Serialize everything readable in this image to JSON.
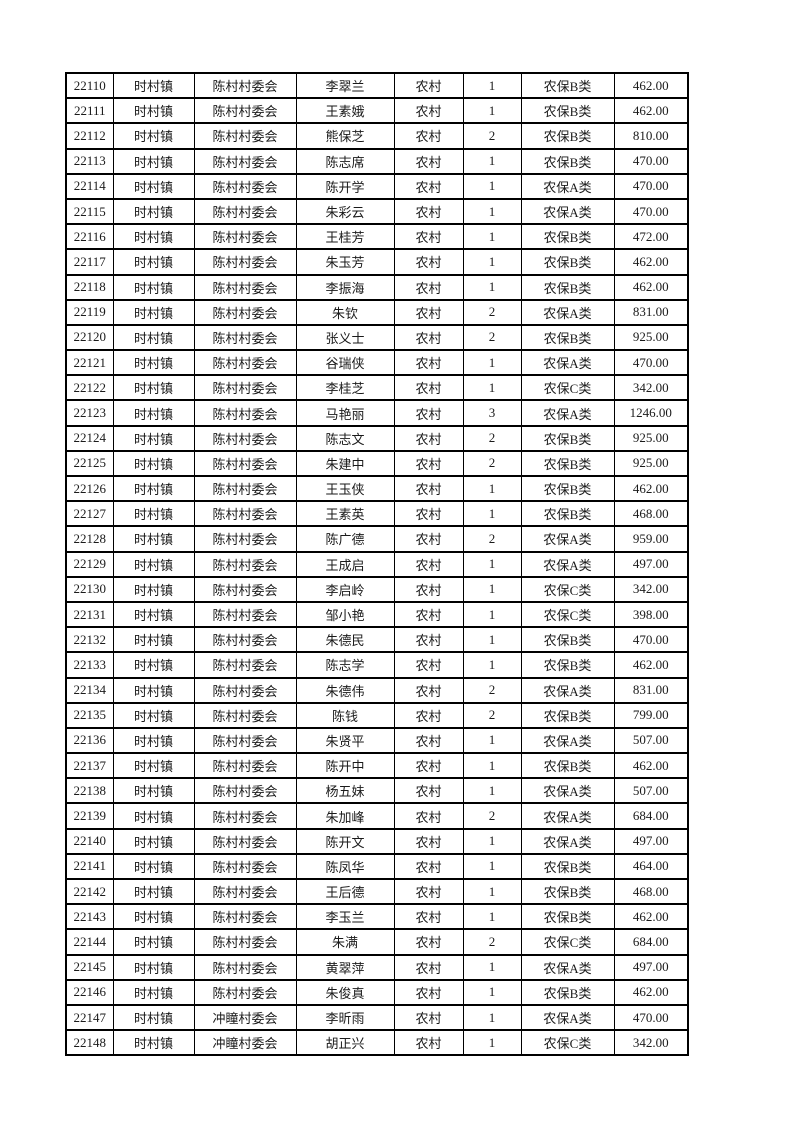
{
  "page": {
    "background_color": "#ffffff",
    "text_color": "#1a1a1a",
    "border_color": "#000000"
  },
  "table": {
    "column_keys": [
      "seq-number",
      "town",
      "village-committee",
      "person-name",
      "area-type",
      "person-count",
      "insurance-category",
      "amount"
    ],
    "rows": [
      [
        "22110",
        "时村镇",
        "陈村村委会",
        "李翠兰",
        "农村",
        "1",
        "农保B类",
        "462.00"
      ],
      [
        "22111",
        "时村镇",
        "陈村村委会",
        "王素娥",
        "农村",
        "1",
        "农保B类",
        "462.00"
      ],
      [
        "22112",
        "时村镇",
        "陈村村委会",
        "熊保芝",
        "农村",
        "2",
        "农保B类",
        "810.00"
      ],
      [
        "22113",
        "时村镇",
        "陈村村委会",
        "陈志席",
        "农村",
        "1",
        "农保B类",
        "470.00"
      ],
      [
        "22114",
        "时村镇",
        "陈村村委会",
        "陈开学",
        "农村",
        "1",
        "农保A类",
        "470.00"
      ],
      [
        "22115",
        "时村镇",
        "陈村村委会",
        "朱彩云",
        "农村",
        "1",
        "农保A类",
        "470.00"
      ],
      [
        "22116",
        "时村镇",
        "陈村村委会",
        "王桂芳",
        "农村",
        "1",
        "农保B类",
        "472.00"
      ],
      [
        "22117",
        "时村镇",
        "陈村村委会",
        "朱玉芳",
        "农村",
        "1",
        "农保B类",
        "462.00"
      ],
      [
        "22118",
        "时村镇",
        "陈村村委会",
        "李振海",
        "农村",
        "1",
        "农保B类",
        "462.00"
      ],
      [
        "22119",
        "时村镇",
        "陈村村委会",
        "朱钦",
        "农村",
        "2",
        "农保A类",
        "831.00"
      ],
      [
        "22120",
        "时村镇",
        "陈村村委会",
        "张义士",
        "农村",
        "2",
        "农保B类",
        "925.00"
      ],
      [
        "22121",
        "时村镇",
        "陈村村委会",
        "谷瑞侠",
        "农村",
        "1",
        "农保A类",
        "470.00"
      ],
      [
        "22122",
        "时村镇",
        "陈村村委会",
        "李桂芝",
        "农村",
        "1",
        "农保C类",
        "342.00"
      ],
      [
        "22123",
        "时村镇",
        "陈村村委会",
        "马艳丽",
        "农村",
        "3",
        "农保A类",
        "1246.00"
      ],
      [
        "22124",
        "时村镇",
        "陈村村委会",
        "陈志文",
        "农村",
        "2",
        "农保B类",
        "925.00"
      ],
      [
        "22125",
        "时村镇",
        "陈村村委会",
        "朱建中",
        "农村",
        "2",
        "农保B类",
        "925.00"
      ],
      [
        "22126",
        "时村镇",
        "陈村村委会",
        "王玉侠",
        "农村",
        "1",
        "农保B类",
        "462.00"
      ],
      [
        "22127",
        "时村镇",
        "陈村村委会",
        "王素英",
        "农村",
        "1",
        "农保B类",
        "468.00"
      ],
      [
        "22128",
        "时村镇",
        "陈村村委会",
        "陈广德",
        "农村",
        "2",
        "农保A类",
        "959.00"
      ],
      [
        "22129",
        "时村镇",
        "陈村村委会",
        "王成启",
        "农村",
        "1",
        "农保A类",
        "497.00"
      ],
      [
        "22130",
        "时村镇",
        "陈村村委会",
        "李启岭",
        "农村",
        "1",
        "农保C类",
        "342.00"
      ],
      [
        "22131",
        "时村镇",
        "陈村村委会",
        "邹小艳",
        "农村",
        "1",
        "农保C类",
        "398.00"
      ],
      [
        "22132",
        "时村镇",
        "陈村村委会",
        "朱德民",
        "农村",
        "1",
        "农保B类",
        "470.00"
      ],
      [
        "22133",
        "时村镇",
        "陈村村委会",
        "陈志学",
        "农村",
        "1",
        "农保B类",
        "462.00"
      ],
      [
        "22134",
        "时村镇",
        "陈村村委会",
        "朱德伟",
        "农村",
        "2",
        "农保A类",
        "831.00"
      ],
      [
        "22135",
        "时村镇",
        "陈村村委会",
        "陈钱",
        "农村",
        "2",
        "农保B类",
        "799.00"
      ],
      [
        "22136",
        "时村镇",
        "陈村村委会",
        "朱贤平",
        "农村",
        "1",
        "农保A类",
        "507.00"
      ],
      [
        "22137",
        "时村镇",
        "陈村村委会",
        "陈开中",
        "农村",
        "1",
        "农保B类",
        "462.00"
      ],
      [
        "22138",
        "时村镇",
        "陈村村委会",
        "杨五妹",
        "农村",
        "1",
        "农保A类",
        "507.00"
      ],
      [
        "22139",
        "时村镇",
        "陈村村委会",
        "朱加峰",
        "农村",
        "2",
        "农保A类",
        "684.00"
      ],
      [
        "22140",
        "时村镇",
        "陈村村委会",
        "陈开文",
        "农村",
        "1",
        "农保A类",
        "497.00"
      ],
      [
        "22141",
        "时村镇",
        "陈村村委会",
        "陈凤华",
        "农村",
        "1",
        "农保B类",
        "464.00"
      ],
      [
        "22142",
        "时村镇",
        "陈村村委会",
        "王后德",
        "农村",
        "1",
        "农保B类",
        "468.00"
      ],
      [
        "22143",
        "时村镇",
        "陈村村委会",
        "李玉兰",
        "农村",
        "1",
        "农保B类",
        "462.00"
      ],
      [
        "22144",
        "时村镇",
        "陈村村委会",
        "朱满",
        "农村",
        "2",
        "农保C类",
        "684.00"
      ],
      [
        "22145",
        "时村镇",
        "陈村村委会",
        "黄翠萍",
        "农村",
        "1",
        "农保A类",
        "497.00"
      ],
      [
        "22146",
        "时村镇",
        "陈村村委会",
        "朱俊真",
        "农村",
        "1",
        "农保B类",
        "462.00"
      ],
      [
        "22147",
        "时村镇",
        "冲瞳村委会",
        "李昕雨",
        "农村",
        "1",
        "农保A类",
        "470.00"
      ],
      [
        "22148",
        "时村镇",
        "冲瞳村委会",
        "胡正兴",
        "农村",
        "1",
        "农保C类",
        "342.00"
      ]
    ]
  }
}
